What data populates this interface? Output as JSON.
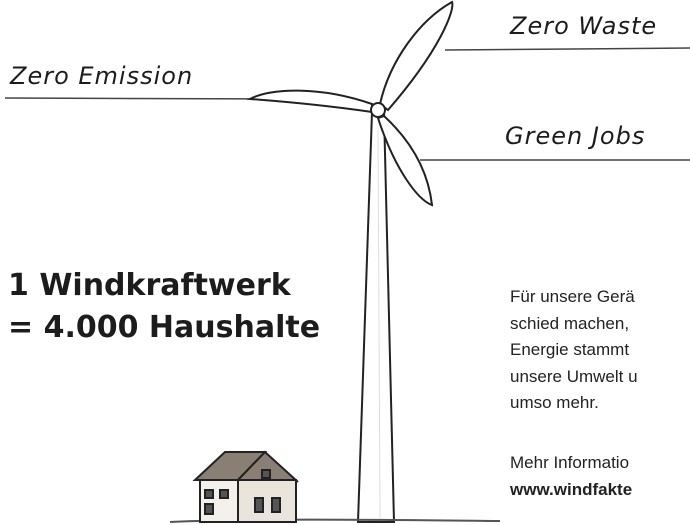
{
  "labels": {
    "zero_waste": "Zero Waste",
    "zero_emission": "Zero Emission",
    "green_jobs": "Green Jobs"
  },
  "headline": {
    "line1": "1 Windkraftwerk",
    "line2": "= 4.000 Haushalte"
  },
  "paragraph": {
    "lines": [
      "Für unsere Gerä",
      "schied machen,",
      "Energie stammt",
      "unsere Umwelt u",
      "umso mehr."
    ]
  },
  "info": {
    "lines": [
      "Mehr Informatio",
      "www.windfakte"
    ]
  }
}
